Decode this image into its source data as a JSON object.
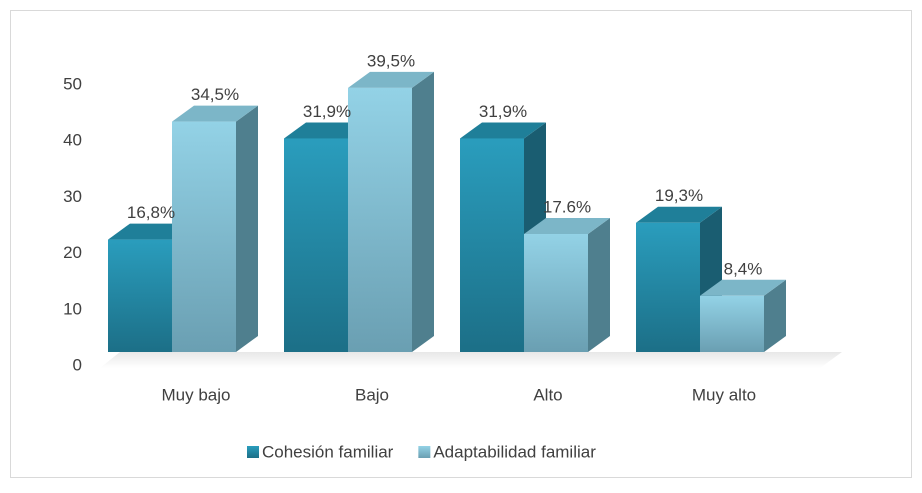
{
  "chart_data": {
    "type": "bar3d",
    "categories": [
      "Muy bajo",
      "Bajo",
      "Alto",
      "Muy alto"
    ],
    "series": [
      {
        "name": "Cohesión familiar",
        "color": "#2596b5",
        "values": [
          20,
          38,
          38,
          23
        ],
        "data_labels": [
          "16,8%",
          "31,9%",
          "31,9%",
          "19,3%"
        ]
      },
      {
        "name": "Adaptabilidad familiar",
        "color": "#8fcfe4",
        "values": [
          41,
          47,
          21,
          10
        ],
        "data_labels": [
          "34,5%",
          "39,5%",
          "17.6%",
          "8,4%"
        ]
      }
    ],
    "ylim": [
      0,
      50
    ],
    "yticks": [
      0,
      10,
      20,
      30,
      40,
      50
    ],
    "legend": "bottom"
  }
}
